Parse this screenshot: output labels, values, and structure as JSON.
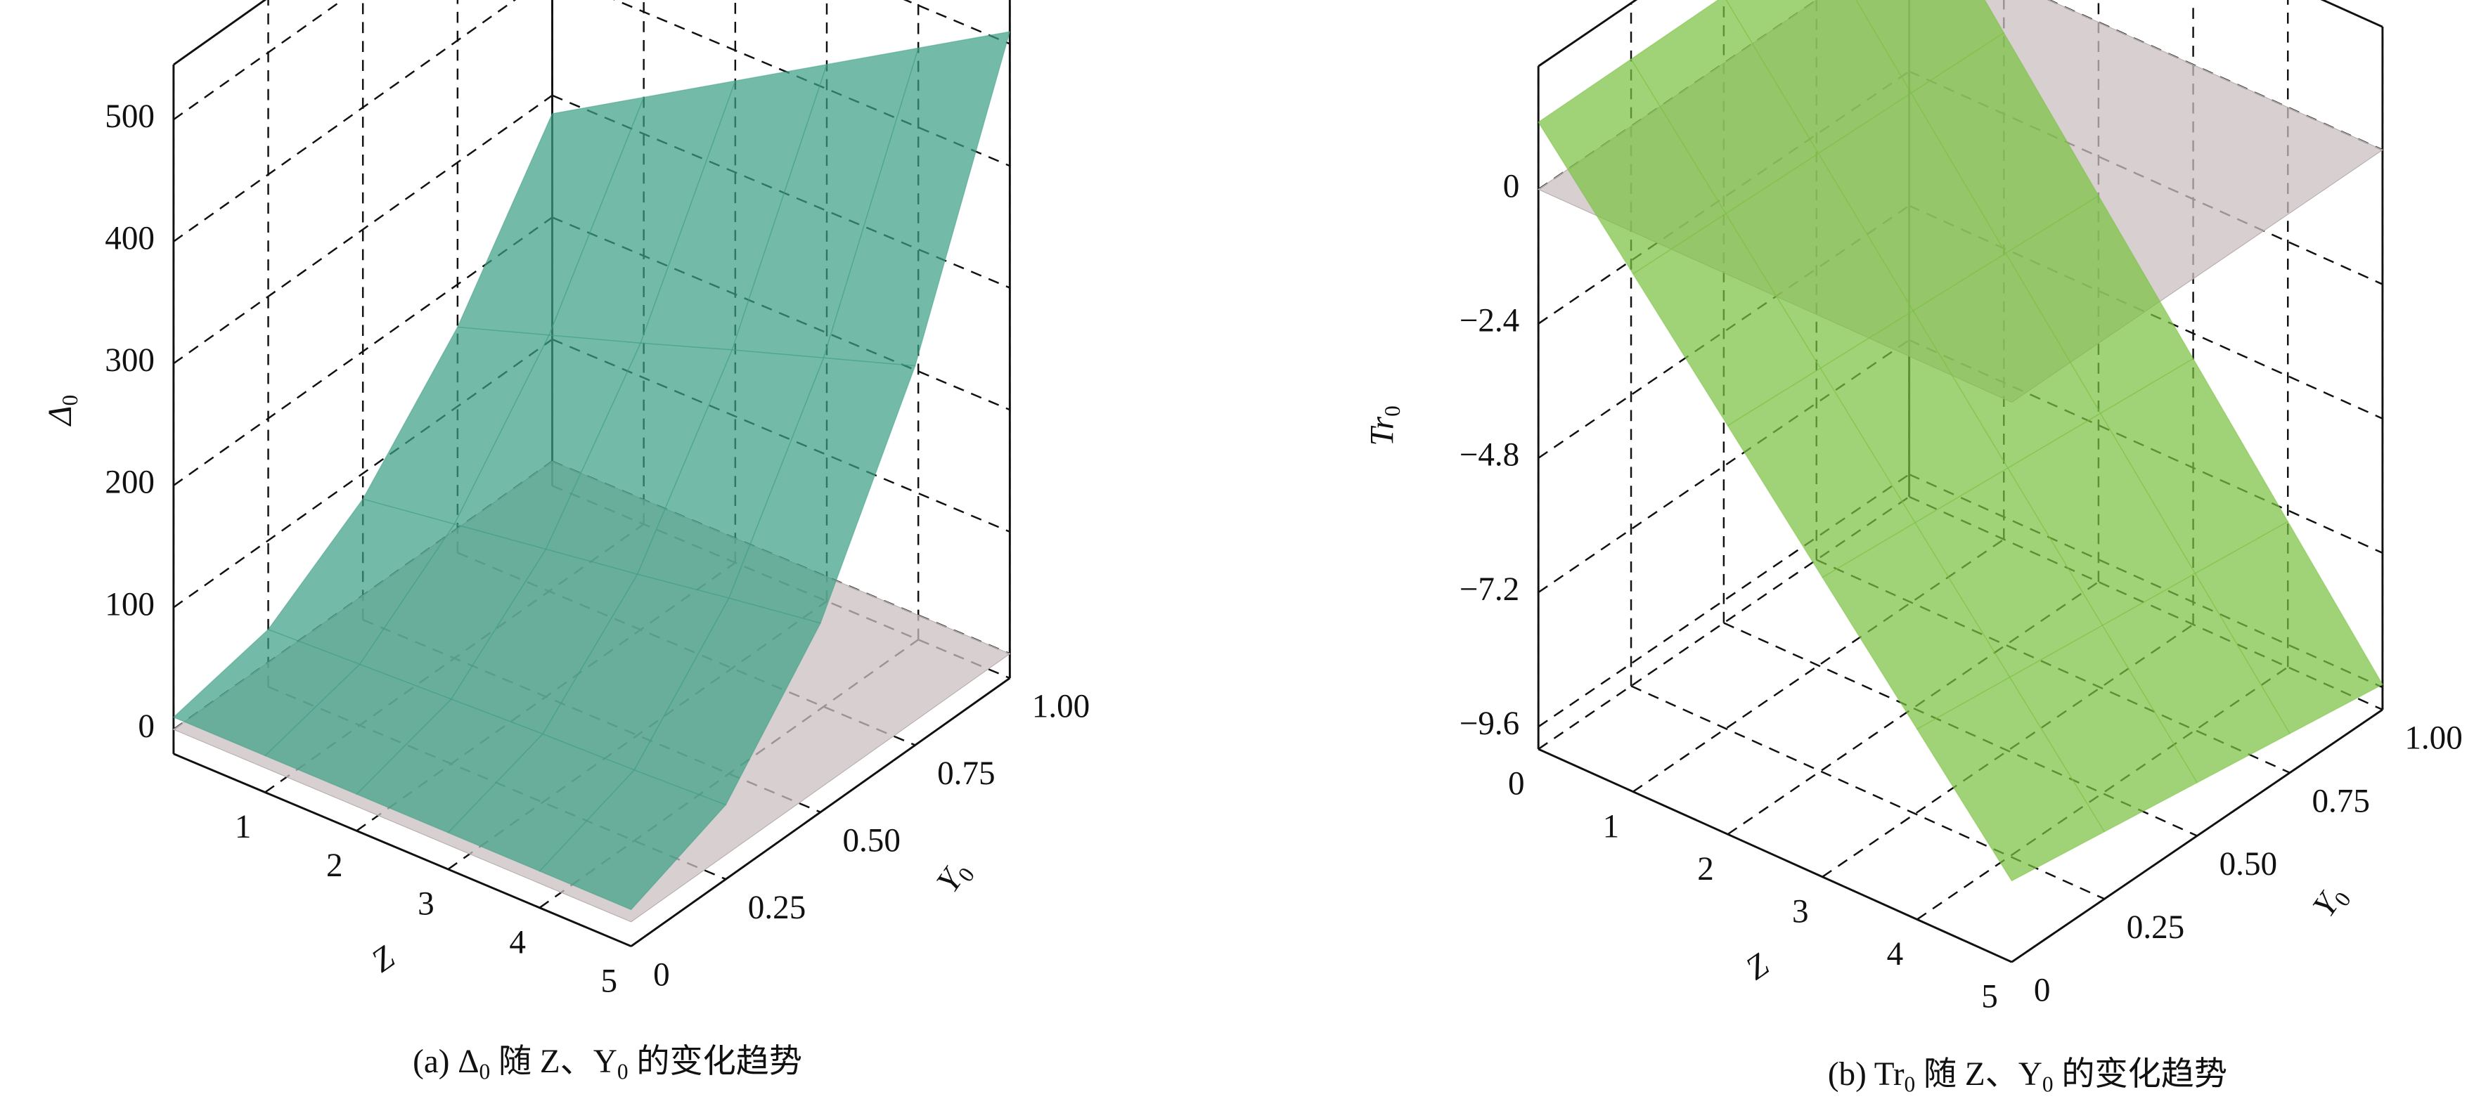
{
  "chart_data": [
    {
      "type": "surface3d",
      "zlabel": [
        "Δ",
        "0"
      ],
      "xlabel": "Z",
      "ylabel": [
        "Y",
        "0"
      ],
      "caption": [
        {
          "text": "(a) Δ"
        },
        {
          "sub": "0"
        },
        {
          "text": " 随 Z、Y"
        },
        {
          "sub": "0"
        },
        {
          "text": " 的变化趋势"
        }
      ],
      "xlim": [
        0,
        5
      ],
      "ylim": [
        0,
        1
      ],
      "zlim": [
        -20,
        545
      ],
      "xticks": [
        1,
        2,
        3,
        4,
        5
      ],
      "yticks": [
        0,
        {
          "value": 0.25,
          "label": "0.25"
        },
        {
          "value": 0.5,
          "label": "0.50"
        },
        {
          "value": 0.75,
          "label": "0.75"
        },
        {
          "value": 1,
          "label": "1.00"
        }
      ],
      "zticks": [
        0,
        100,
        200,
        300,
        400,
        500
      ],
      "x": [
        0,
        1,
        2,
        3,
        4,
        5
      ],
      "y": [
        0,
        0.25,
        0.5,
        0.75,
        1
      ],
      "values": [
        [
          10,
          27,
          79,
          165,
          285
        ],
        [
          10,
          30,
          90,
          190,
          330
        ],
        [
          10,
          33,
          101,
          215,
          375
        ],
        [
          10,
          36,
          112,
          241,
          420
        ],
        [
          10,
          38,
          124,
          266,
          465
        ],
        [
          10,
          41,
          135,
          291,
          510
        ]
      ],
      "color": "#3f9f86",
      "plane_value": 0,
      "plane_color": "#c9bfc0",
      "grid": true
    },
    {
      "type": "surface3d",
      "zlabel": [
        "Tr",
        "0"
      ],
      "xlabel": "Z",
      "ylabel": [
        "Y",
        "0"
      ],
      "caption": [
        {
          "text": "(b) Tr"
        },
        {
          "sub": "0"
        },
        {
          "text": " 随 Z、Y"
        },
        {
          "sub": "0"
        },
        {
          "text": " 的变化趋势"
        }
      ],
      "xlim": [
        0,
        5
      ],
      "ylim": [
        0,
        1
      ],
      "zlim": [
        -10,
        2.2
      ],
      "xticks": [
        0,
        1,
        2,
        3,
        4,
        5
      ],
      "yticks": [
        0,
        {
          "value": 0.25,
          "label": "0.25"
        },
        {
          "value": 0.5,
          "label": "0.50"
        },
        {
          "value": 0.75,
          "label": "0.75"
        },
        {
          "value": 1,
          "label": "1.00"
        }
      ],
      "zticks": [
        0,
        {
          "value": -2.4,
          "label": "−2.4"
        },
        {
          "value": -4.8,
          "label": "−4.8"
        },
        {
          "value": -7.2,
          "label": "−7.2"
        },
        {
          "value": -9.6,
          "label": "−9.6"
        }
      ],
      "x": [
        0,
        1,
        2,
        3,
        4,
        5
      ],
      "y": [
        0,
        0.25,
        0.5,
        0.75,
        1
      ],
      "values": [
        [
          1.2,
          1.2,
          1.2,
          1.2,
          1.2
        ],
        [
          -0.75,
          -0.8,
          -0.85,
          -0.9,
          -0.95
        ],
        [
          -2.7,
          -2.8,
          -2.9,
          -3.0,
          -3.1
        ],
        [
          -4.65,
          -4.8,
          -4.95,
          -5.1,
          -5.25
        ],
        [
          -6.6,
          -6.8,
          -7.0,
          -7.2,
          -7.4
        ],
        [
          -8.55,
          -8.8,
          -9.05,
          -9.3,
          -9.55
        ]
      ],
      "color": "#7cc242",
      "plane_value": 0,
      "plane_color": "#c9bfc0",
      "grid": true
    }
  ]
}
